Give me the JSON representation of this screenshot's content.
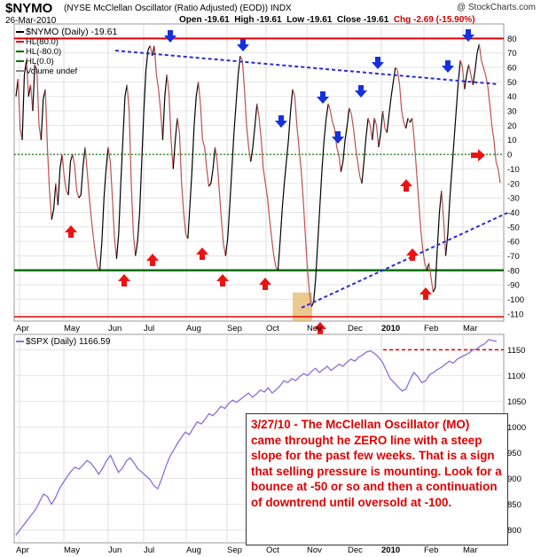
{
  "header": {
    "symbol": "$NYMO",
    "description": "(NYSE McClellan Oscillator (Ratio Adjusted) (EOD)) INDX",
    "credit": "@ StockCharts.com",
    "date": "26-Mar-2010",
    "open": "Open -19.61",
    "high": "High -19.61",
    "low": "Low -19.61",
    "close": "Close -19.61",
    "chg": "Chg -2.69 (-15.90%)"
  },
  "legend_top": {
    "items": [
      {
        "label": "$NYMO (Daily) -19.61",
        "color": "#000000"
      },
      {
        "label": "HL(80.0)",
        "color": "#e00000"
      },
      {
        "label": "HL(-80.0)",
        "color": "#007000"
      },
      {
        "label": "HL(0.0)",
        "color": "#007000"
      },
      {
        "label": "Volume undef",
        "color": "#888888"
      }
    ]
  },
  "legend_bottom": {
    "label": "$SPX (Daily) 1166.59",
    "color": "#8a6ee0"
  },
  "annotation": {
    "text": "3/27/10 - The McClellan Oscillator (MO) came throught he ZERO line with a steep slope for the past few weeks. That is a sign that selling pressure is mounting. Look for a bounce at -50 or so and then a continuation of downtrend until oversold at -100."
  },
  "colors": {
    "nymo_up": "#000000",
    "nymo_down": "#c05050",
    "hl_80": "#e00000",
    "hl_minus80": "#007000",
    "hl_zero": "#007000",
    "spx": "#8a6ee0",
    "trendline": "#2b2bdc",
    "arrow_down": "#1530e0",
    "arrow_up": "#ee1111",
    "highlight": "#e8c17a",
    "resistance": "#e00000"
  },
  "chart_data": [
    {
      "type": "line",
      "series_name": "$NYMO (Daily)",
      "x_ticks": [
        "Apr",
        "May",
        "Jun",
        "Jul",
        "Aug",
        "Sep",
        "Oct",
        "Nov",
        "Dec",
        "2010",
        "Feb",
        "Mar"
      ],
      "ylim": [
        -115,
        90
      ],
      "y_ticks": [
        80,
        70,
        60,
        50,
        40,
        30,
        20,
        10,
        0,
        -10,
        -20,
        -30,
        -40,
        -50,
        -60,
        -70,
        -80,
        -90,
        -100,
        -110
      ],
      "horizontal_lines": [
        80,
        -80,
        0,
        -112
      ],
      "values": [
        40,
        52,
        18,
        10,
        55,
        65,
        40,
        48,
        30,
        62,
        58,
        20,
        10,
        38,
        45,
        5,
        -25,
        -45,
        -38,
        -20,
        -35,
        -10,
        0,
        -15,
        -25,
        -28,
        -5,
        0,
        -8,
        -25,
        -30,
        -28,
        -8,
        5,
        -12,
        -30,
        -45,
        -58,
        -70,
        -78,
        -80,
        -60,
        -30,
        -10,
        5,
        -5,
        -30,
        -58,
        -72,
        -55,
        -20,
        10,
        40,
        48,
        30,
        -20,
        -55,
        -70,
        -60,
        -40,
        -5,
        30,
        58,
        72,
        75,
        68,
        75,
        55,
        45,
        30,
        10,
        40,
        55,
        42,
        10,
        -10,
        10,
        25,
        15,
        -20,
        -40,
        -55,
        -58,
        -35,
        -10,
        20,
        40,
        50,
        35,
        10,
        5,
        -10,
        -22,
        -20,
        -10,
        5,
        -5,
        -25,
        -45,
        -62,
        -70,
        -58,
        -35,
        -10,
        15,
        35,
        55,
        68,
        65,
        45,
        20,
        5,
        -5,
        5,
        20,
        35,
        25,
        10,
        -10,
        -20,
        -30,
        -45,
        -58,
        -70,
        -78,
        -80,
        -60,
        -38,
        -20,
        -5,
        10,
        30,
        45,
        40,
        20,
        5,
        -10,
        -30,
        -55,
        -78,
        -95,
        -105,
        -102,
        -85,
        -60,
        -35,
        -10,
        10,
        25,
        35,
        30,
        22,
        18,
        5,
        0,
        -12,
        -5,
        10,
        20,
        32,
        28,
        18,
        5,
        -5,
        -15,
        -20,
        -5,
        12,
        25,
        20,
        10,
        25,
        20,
        5,
        15,
        30,
        18,
        15,
        28,
        40,
        50,
        60,
        58,
        48,
        30,
        22,
        18,
        25,
        22,
        25,
        10,
        -10,
        -30,
        -50,
        -65,
        -75,
        -80,
        -75,
        -85,
        -95,
        -92,
        -65,
        -40,
        -25,
        -45,
        -70,
        -55,
        -30,
        -10,
        10,
        30,
        50,
        65,
        60,
        45,
        55,
        62,
        55,
        48,
        58,
        70,
        76,
        65,
        60,
        55,
        48,
        35,
        20,
        10,
        -5,
        -10,
        -19.61
      ]
    },
    {
      "type": "line",
      "series_name": "$SPX (Daily)",
      "x_ticks": [
        "Apr",
        "May",
        "Jun",
        "Jul",
        "Aug",
        "Sep",
        "Oct",
        "Nov",
        "Dec",
        "2010",
        "Feb",
        "Mar"
      ],
      "ylim": [
        775,
        1180
      ],
      "y_ticks": [
        1150,
        1100,
        1050,
        1000,
        950,
        900,
        850,
        800
      ],
      "resistance_level": 1150,
      "values": [
        790,
        800,
        810,
        820,
        830,
        840,
        855,
        870,
        865,
        850,
        862,
        880,
        892,
        904,
        914,
        922,
        918,
        926,
        935,
        930,
        920,
        908,
        920,
        935,
        945,
        928,
        912,
        920,
        934,
        940,
        930,
        918,
        912,
        905,
        898,
        886,
        880,
        900,
        922,
        942,
        955,
        968,
        980,
        990,
        985,
        998,
        1010,
        1006,
        1015,
        1026,
        1022,
        1030,
        1040,
        1036,
        1046,
        1052,
        1048,
        1054,
        1060,
        1066,
        1058,
        1064,
        1072,
        1068,
        1076,
        1066,
        1072,
        1080,
        1090,
        1086,
        1094,
        1090,
        1098,
        1104,
        1100,
        1108,
        1114,
        1106,
        1112,
        1118,
        1110,
        1116,
        1122,
        1118,
        1126,
        1132,
        1128,
        1136,
        1140,
        1146,
        1148,
        1143,
        1136,
        1126,
        1110,
        1094,
        1086,
        1078,
        1070,
        1074,
        1092,
        1106,
        1098,
        1086,
        1090,
        1102,
        1106,
        1112,
        1116,
        1122,
        1128,
        1124,
        1132,
        1136,
        1140,
        1144,
        1150,
        1152,
        1158,
        1162,
        1170,
        1168,
        1166.59
      ]
    }
  ]
}
